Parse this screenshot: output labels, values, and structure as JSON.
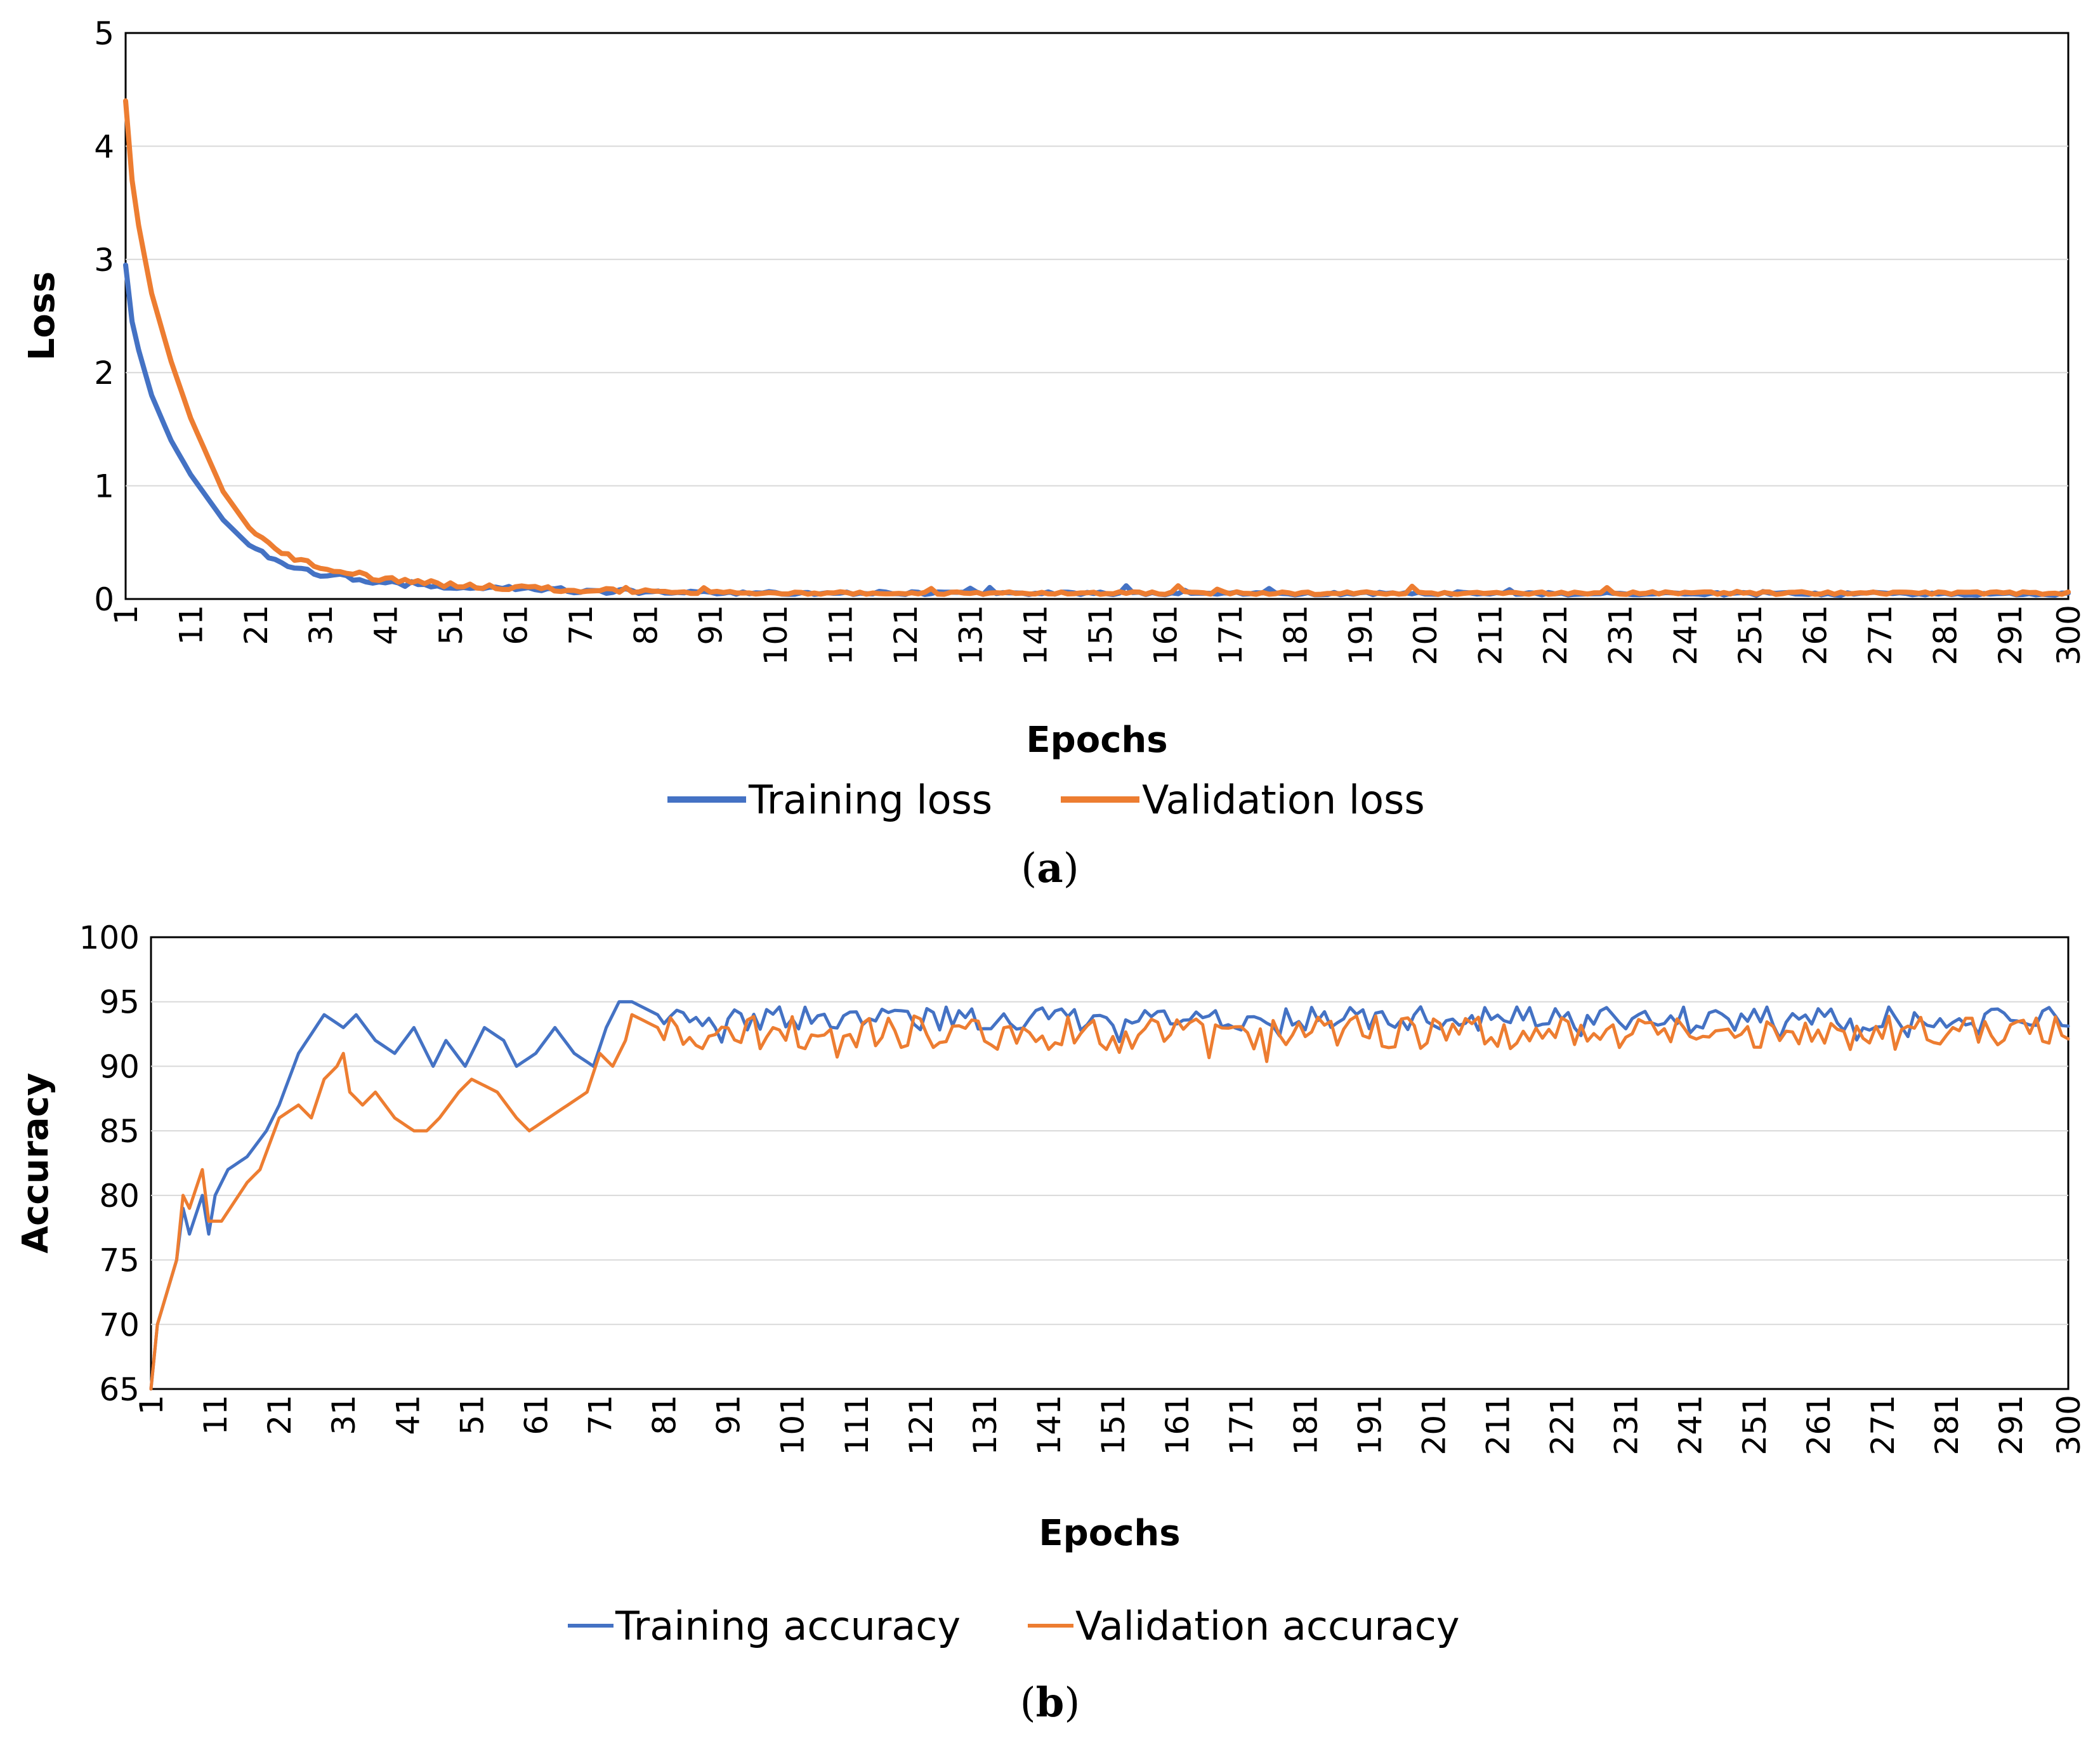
{
  "colors": {
    "training": "#4472C4",
    "validation": "#ED7D31",
    "grid": "#D9D9D9",
    "axis": "#000000"
  },
  "chart_data": [
    {
      "type": "line",
      "panel_label": "(a)",
      "panel_letter": "a",
      "title": "",
      "xlabel": "Epochs",
      "ylabel": "Loss",
      "xlim": [
        1,
        300
      ],
      "ylim": [
        0,
        5
      ],
      "yticks": [
        "0",
        "1",
        "2",
        "3",
        "4",
        "5"
      ],
      "xticks": [
        "1",
        "11",
        "21",
        "31",
        "41",
        "51",
        "61",
        "71",
        "81",
        "91",
        "101",
        "111",
        "121",
        "131",
        "141",
        "151",
        "161",
        "171",
        "181",
        "191",
        "201",
        "211",
        "221",
        "231",
        "241",
        "251",
        "261",
        "271",
        "281",
        "291",
        "300"
      ],
      "grid": true,
      "legend_position": "bottom-center",
      "series": [
        {
          "name": "Training loss",
          "color_key": "training",
          "model": {
            "kind": "decay",
            "start": 2.95,
            "tau": 11.5,
            "end_value": 0.03,
            "noise": 0.025
          },
          "values": [
            [
              1,
              2.95
            ],
            [
              2,
              2.45
            ],
            [
              3,
              2.2
            ],
            [
              5,
              1.8
            ],
            [
              8,
              1.4
            ],
            [
              11,
              1.1
            ],
            [
              16,
              0.7
            ],
            [
              21,
              0.42
            ],
            [
              26,
              0.27
            ],
            [
              31,
              0.2
            ],
            [
              41,
              0.12
            ],
            [
              51,
              0.08
            ],
            [
              71,
              0.05
            ],
            [
              101,
              0.04
            ],
            [
              300,
              0.03
            ]
          ]
        },
        {
          "name": "Validation loss",
          "color_key": "validation",
          "model": {
            "kind": "decay",
            "start": 4.4,
            "tau": 10.5,
            "end_value": 0.04,
            "noise": 0.025
          },
          "values": [
            [
              1,
              4.4
            ],
            [
              2,
              3.7
            ],
            [
              3,
              3.3
            ],
            [
              5,
              2.7
            ],
            [
              8,
              2.1
            ],
            [
              11,
              1.6
            ],
            [
              16,
              0.95
            ],
            [
              21,
              0.55
            ],
            [
              26,
              0.35
            ],
            [
              31,
              0.25
            ],
            [
              41,
              0.15
            ],
            [
              51,
              0.1
            ],
            [
              71,
              0.06
            ],
            [
              101,
              0.04
            ],
            [
              300,
              0.04
            ]
          ]
        }
      ]
    },
    {
      "type": "line",
      "panel_label": "(b)",
      "panel_letter": "b",
      "title": "",
      "xlabel": "Epochs",
      "ylabel": "Accuracy",
      "xlim": [
        1,
        300
      ],
      "ylim": [
        65,
        100
      ],
      "yticks": [
        "65",
        "70",
        "75",
        "80",
        "85",
        "90",
        "95",
        "100"
      ],
      "xticks": [
        "1",
        "11",
        "21",
        "31",
        "41",
        "51",
        "61",
        "71",
        "81",
        "91",
        "101",
        "111",
        "121",
        "131",
        "141",
        "151",
        "161",
        "171",
        "181",
        "191",
        "201",
        "211",
        "221",
        "231",
        "241",
        "251",
        "261",
        "271",
        "281",
        "291",
        "300"
      ],
      "grid": true,
      "legend_position": "bottom-center",
      "series": [
        {
          "name": "Training accuracy",
          "color_key": "training",
          "model": {
            "kind": "plateau",
            "plateau_mean": 93.7,
            "plateau_noise": 0.7
          },
          "values": [
            [
              1,
              65
            ],
            [
              2,
              70
            ],
            [
              5,
              75
            ],
            [
              6,
              79
            ],
            [
              7,
              77
            ],
            [
              9,
              80
            ],
            [
              10,
              77
            ],
            [
              11,
              80
            ],
            [
              13,
              82
            ],
            [
              16,
              83
            ],
            [
              19,
              85
            ],
            [
              21,
              87
            ],
            [
              24,
              91
            ],
            [
              28,
              94
            ],
            [
              31,
              93
            ],
            [
              33,
              94
            ],
            [
              36,
              92
            ],
            [
              39,
              91
            ],
            [
              42,
              93
            ],
            [
              45,
              90
            ],
            [
              47,
              92
            ],
            [
              50,
              90
            ],
            [
              53,
              93
            ],
            [
              56,
              92
            ],
            [
              58,
              90
            ],
            [
              61,
              91
            ],
            [
              64,
              93
            ],
            [
              67,
              91
            ],
            [
              70,
              90
            ],
            [
              72,
              93
            ],
            [
              74,
              95
            ],
            [
              76,
              95
            ],
            [
              80,
              94
            ]
          ]
        },
        {
          "name": "Validation accuracy",
          "color_key": "validation",
          "model": {
            "kind": "plateau",
            "plateau_mean": 92.6,
            "plateau_noise": 1.0
          },
          "values": [
            [
              1,
              65
            ],
            [
              2,
              70
            ],
            [
              5,
              75
            ],
            [
              6,
              80
            ],
            [
              7,
              79
            ],
            [
              9,
              82
            ],
            [
              10,
              78
            ],
            [
              12,
              78
            ],
            [
              16,
              81
            ],
            [
              18,
              82
            ],
            [
              21,
              86
            ],
            [
              24,
              87
            ],
            [
              26,
              86
            ],
            [
              28,
              89
            ],
            [
              30,
              90
            ],
            [
              31,
              91
            ],
            [
              32,
              88
            ],
            [
              34,
              87
            ],
            [
              36,
              88
            ],
            [
              39,
              86
            ],
            [
              42,
              85
            ],
            [
              44,
              85
            ],
            [
              46,
              86
            ],
            [
              49,
              88
            ],
            [
              51,
              89
            ],
            [
              55,
              88
            ],
            [
              58,
              86
            ],
            [
              60,
              85
            ],
            [
              63,
              86
            ],
            [
              66,
              87
            ],
            [
              69,
              88
            ],
            [
              71,
              91
            ],
            [
              73,
              90
            ],
            [
              75,
              92
            ],
            [
              76,
              94
            ],
            [
              80,
              93
            ]
          ]
        }
      ]
    }
  ]
}
